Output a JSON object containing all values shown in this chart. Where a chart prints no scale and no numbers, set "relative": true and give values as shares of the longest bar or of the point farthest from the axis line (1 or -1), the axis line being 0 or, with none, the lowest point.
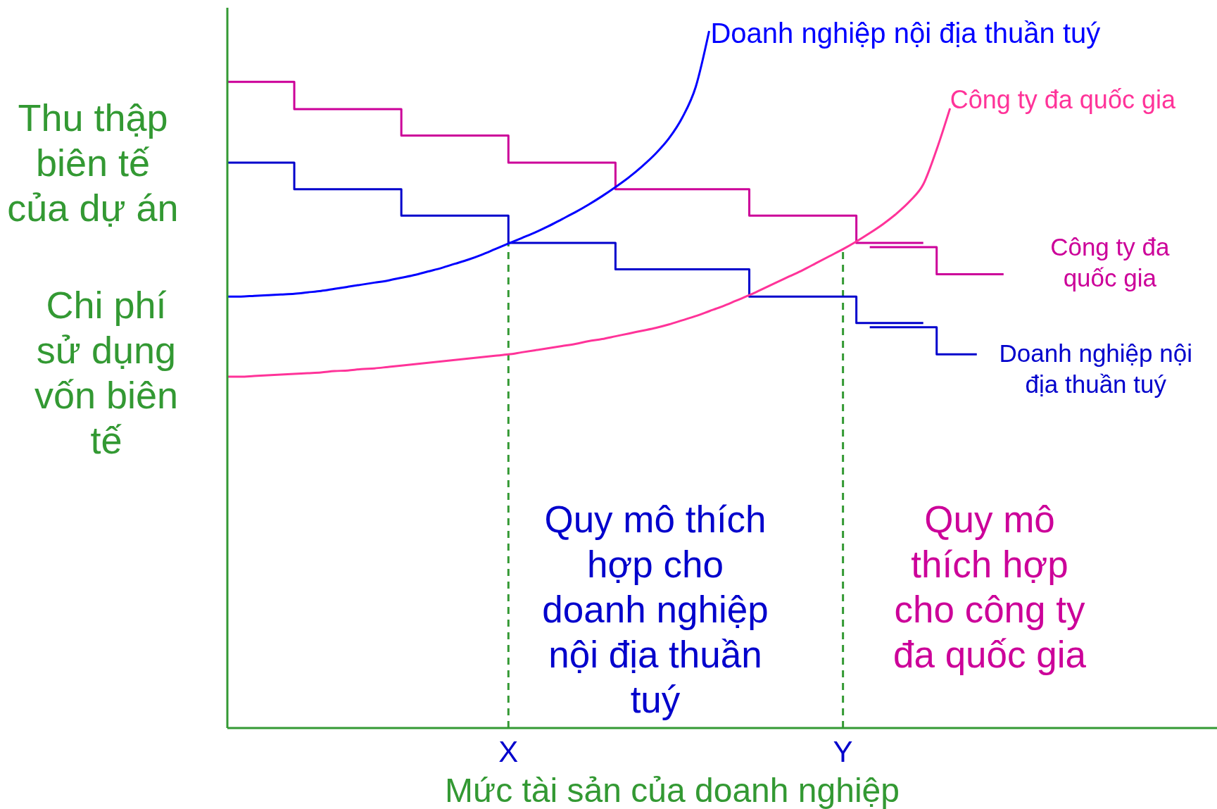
{
  "chart_data": {
    "type": "step",
    "relative": true,
    "xlabel": "Mức tài sản của doanh nghiệp",
    "ylabel": "Thu thập\nbiên tế\ncủa dự án",
    "categories": [
      null,
      null,
      null,
      null,
      null,
      null,
      null,
      null,
      null,
      null,
      null,
      null,
      null,
      null,
      null,
      null,
      null,
      null,
      null,
      null,
      null,
      "X",
      null,
      null,
      null,
      null,
      null,
      null,
      null,
      null,
      null,
      null,
      null,
      null,
      null,
      null,
      null,
      null,
      null,
      null,
      null,
      null,
      null,
      null,
      null,
      null,
      "Y",
      null,
      null,
      null,
      null,
      null,
      null,
      null,
      null,
      null,
      null,
      null,
      null,
      null,
      null,
      null,
      null,
      null,
      null,
      null,
      null,
      null,
      null,
      null,
      null,
      null,
      null,
      null
    ],
    "legend": false,
    "series": [
      {
        "color": "#cc0099",
        "values": [
          0.927,
          0.927,
          0.927,
          0.927,
          0.927,
          0.888,
          0.888,
          0.888,
          0.888,
          0.888,
          0.888,
          0.888,
          0.888,
          0.85,
          0.85,
          0.85,
          0.85,
          0.85,
          0.85,
          0.85,
          0.85,
          0.811,
          0.811,
          0.811,
          0.811,
          0.811,
          0.811,
          0.811,
          0.811,
          0.773,
          0.773,
          0.773,
          0.773,
          0.773,
          0.773,
          0.773,
          0.773,
          0.773,
          0.773,
          0.735,
          0.735,
          0.735,
          0.735,
          0.735,
          0.735,
          0.735,
          0.735,
          0.696,
          0.696,
          0.696,
          0.696,
          0.696,
          0.696,
          null,
          null,
          null,
          null,
          null,
          null,
          null,
          null,
          null,
          null,
          null,
          null,
          null,
          null,
          null,
          null,
          null,
          null,
          null,
          null,
          null
        ]
      },
      {
        "name": "Công ty đa\nquốc gia",
        "color": "#cc0099",
        "values": [
          null,
          null,
          null,
          null,
          null,
          null,
          null,
          null,
          null,
          null,
          null,
          null,
          null,
          null,
          null,
          null,
          null,
          null,
          null,
          null,
          null,
          null,
          null,
          null,
          null,
          null,
          null,
          null,
          null,
          null,
          null,
          null,
          null,
          null,
          null,
          null,
          null,
          null,
          null,
          null,
          null,
          null,
          null,
          null,
          null,
          null,
          null,
          null,
          0.69,
          0.69,
          0.69,
          0.69,
          0.69,
          0.651,
          0.651,
          0.651,
          0.651,
          0.651,
          0.651,
          null,
          null,
          null,
          null,
          null,
          null,
          null,
          null,
          null,
          null,
          null,
          null,
          null,
          null,
          null
        ]
      },
      {
        "color": "#0000cc",
        "values": [
          0.811,
          0.811,
          0.811,
          0.811,
          0.811,
          0.773,
          0.773,
          0.773,
          0.773,
          0.773,
          0.773,
          0.773,
          0.773,
          0.735,
          0.735,
          0.735,
          0.735,
          0.735,
          0.735,
          0.735,
          0.735,
          0.696,
          0.696,
          0.696,
          0.696,
          0.696,
          0.696,
          0.696,
          0.696,
          0.658,
          0.658,
          0.658,
          0.658,
          0.658,
          0.658,
          0.658,
          0.658,
          0.658,
          0.658,
          0.619,
          0.619,
          0.619,
          0.619,
          0.619,
          0.619,
          0.619,
          0.619,
          0.581,
          0.581,
          0.581,
          0.581,
          0.581,
          0.581,
          null,
          null,
          null,
          null,
          null,
          null,
          null,
          null,
          null,
          null,
          null,
          null,
          null,
          null,
          null,
          null,
          null,
          null,
          null,
          null,
          null
        ]
      },
      {
        "name": "Doanh nghiệp nội\nđịa thuần tuý",
        "color": "#0000cc",
        "values": [
          null,
          null,
          null,
          null,
          null,
          null,
          null,
          null,
          null,
          null,
          null,
          null,
          null,
          null,
          null,
          null,
          null,
          null,
          null,
          null,
          null,
          null,
          null,
          null,
          null,
          null,
          null,
          null,
          null,
          null,
          null,
          null,
          null,
          null,
          null,
          null,
          null,
          null,
          null,
          null,
          null,
          null,
          null,
          null,
          null,
          null,
          null,
          null,
          0.575,
          0.575,
          0.575,
          0.575,
          0.575,
          0.536,
          0.536,
          0.536,
          0.536,
          null,
          null,
          null,
          null,
          null,
          null,
          null,
          null,
          null,
          null,
          null,
          null,
          null,
          null,
          null,
          null,
          null
        ]
      },
      {
        "name": "Doanh nghiệp nội địa thuần tuý",
        "type": "line",
        "color": "#0000ff",
        "values": [
          0.619,
          0.619,
          0.62,
          0.621,
          0.622,
          0.623,
          0.625,
          0.627,
          0.63,
          0.633,
          0.636,
          0.639,
          0.642,
          0.646,
          0.65,
          0.655,
          0.66,
          0.666,
          0.672,
          0.679,
          0.687,
          0.695,
          0.703,
          0.711,
          0.72,
          0.73,
          0.74,
          0.751,
          0.763,
          0.776,
          0.79,
          0.806,
          0.824,
          0.846,
          0.876,
          0.92,
          1.0,
          null,
          null,
          null,
          null,
          null,
          null,
          null,
          null,
          null,
          null,
          null,
          null,
          null,
          null,
          null,
          null,
          null,
          null,
          null,
          null,
          null,
          null,
          null,
          null,
          null,
          null,
          null,
          null,
          null,
          null,
          null,
          null,
          null,
          null,
          null,
          null,
          null
        ]
      },
      {
        "name": "Công ty đa quốc gia",
        "type": "line",
        "color": "#ff3399",
        "values": [
          0.504,
          0.504,
          0.505,
          0.506,
          0.507,
          0.508,
          0.509,
          0.51,
          0.512,
          0.513,
          0.515,
          0.516,
          0.518,
          0.52,
          0.522,
          0.524,
          0.526,
          0.528,
          0.53,
          0.532,
          0.534,
          0.536,
          0.539,
          0.542,
          0.545,
          0.548,
          0.551,
          0.555,
          0.558,
          0.562,
          0.566,
          0.57,
          0.574,
          0.579,
          0.585,
          0.591,
          0.598,
          0.605,
          0.613,
          0.621,
          0.63,
          0.639,
          0.648,
          0.657,
          0.667,
          0.677,
          0.687,
          0.698,
          0.71,
          0.723,
          0.738,
          0.756,
          0.78,
          0.83,
          0.889,
          null,
          null,
          null,
          null,
          null,
          null,
          null,
          null,
          null,
          null,
          null,
          null,
          null,
          null,
          null,
          null,
          null,
          null,
          null
        ]
      }
    ],
    "ref_lines": [
      {
        "axis": "x",
        "value": "X",
        "color": "#339933",
        "line_style": "dashed"
      },
      {
        "axis": "x",
        "value": "Y",
        "color": "#339933",
        "line_style": "dashed"
      }
    ],
    "annotations": [
      "Chi phí\nsử dụng\nvốn biên\ntế",
      "Quy mô thích\nhợp cho\ndoanh nghiệp\nnội địa thuần\ntuý",
      "Quy mô\nthích hợp\ncho công ty\nđa quốc gia"
    ]
  }
}
